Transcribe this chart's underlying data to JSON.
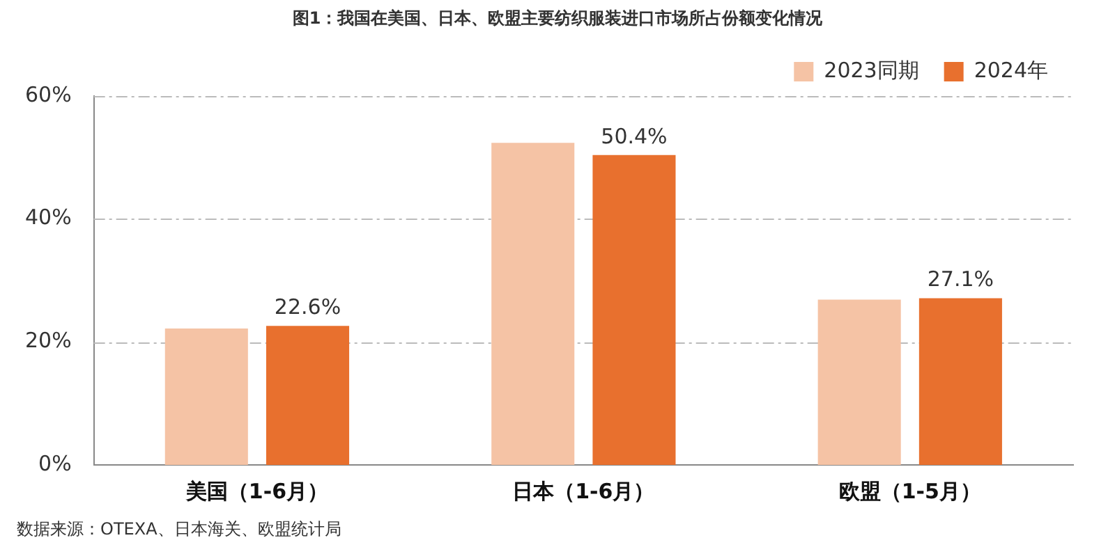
{
  "chart_data": {
    "type": "bar",
    "title": "图1：我国在美国、日本、欧盟主要纺织服装进口市场所占份额变化情况",
    "categories": [
      "美国（1-6月）",
      "日本（1-6月）",
      "欧盟（1-5月）"
    ],
    "series": [
      {
        "name": "2023同期",
        "color": "#f5c3a5",
        "values": [
          22.2,
          52.4,
          26.9
        ]
      },
      {
        "name": "2024年",
        "color": "#e8702e",
        "values": [
          22.6,
          50.4,
          27.1
        ],
        "value_labels": [
          "22.6%",
          "50.4%",
          "27.1%"
        ]
      }
    ],
    "ylim": [
      0,
      60
    ],
    "yticks": [
      {
        "value": 0,
        "label": "0%"
      },
      {
        "value": 20,
        "label": "20%"
      },
      {
        "value": 40,
        "label": "40%"
      },
      {
        "value": 60,
        "label": "60%"
      }
    ],
    "grid": "y",
    "legend": "top right",
    "annotations": [
      "数据来源：OTEXA、日本海关、欧盟统计局"
    ]
  }
}
